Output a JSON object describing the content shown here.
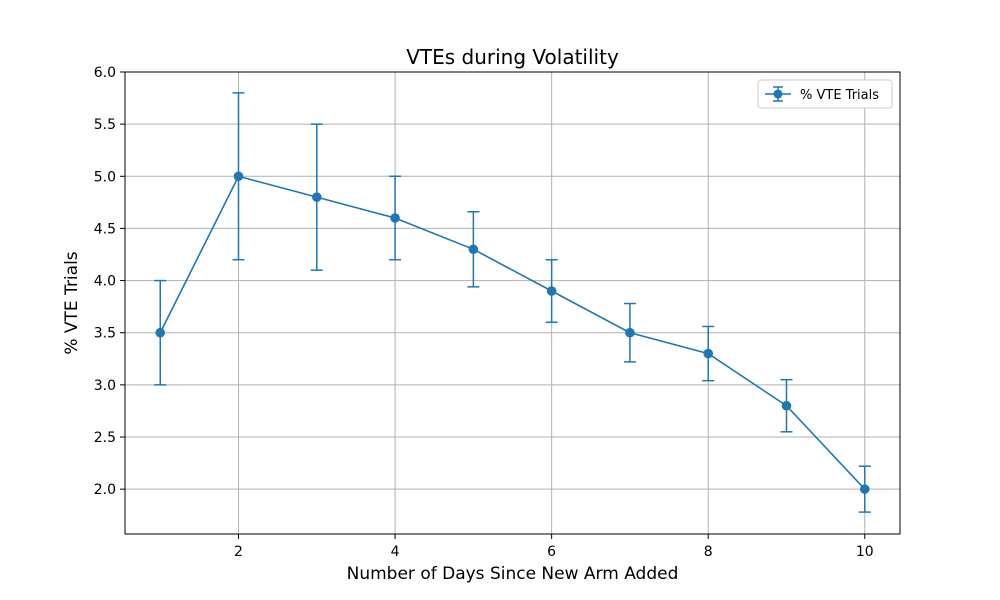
{
  "chart_data": {
    "type": "line",
    "title": "VTEs during Volatility",
    "xlabel": "Number of Days Since New Arm Added",
    "ylabel": "% VTE Trials",
    "x": [
      1,
      2,
      3,
      4,
      5,
      6,
      7,
      8,
      9,
      10
    ],
    "series": [
      {
        "name": "% VTE Trials",
        "values": [
          3.5,
          5.0,
          4.8,
          4.6,
          4.3,
          3.9,
          3.5,
          3.3,
          2.8,
          2.0
        ],
        "error": [
          0.5,
          0.8,
          0.7,
          0.4,
          0.36,
          0.3,
          0.28,
          0.26,
          0.25,
          0.22
        ],
        "color": "#1f77b4"
      }
    ],
    "xlim": [
      0.55,
      10.45
    ],
    "ylim": [
      1.57,
      6.0
    ],
    "xticks": [
      2,
      4,
      6,
      8,
      10
    ],
    "xtick_labels": [
      "2",
      "4",
      "6",
      "8",
      "10"
    ],
    "yticks": [
      2.0,
      2.5,
      3.0,
      3.5,
      4.0,
      4.5,
      5.0,
      5.5,
      6.0
    ],
    "ytick_labels": [
      "2.0",
      "2.5",
      "3.0",
      "3.5",
      "4.0",
      "4.5",
      "5.0",
      "5.5",
      "6.0"
    ],
    "grid": true,
    "legend": "top-right"
  }
}
